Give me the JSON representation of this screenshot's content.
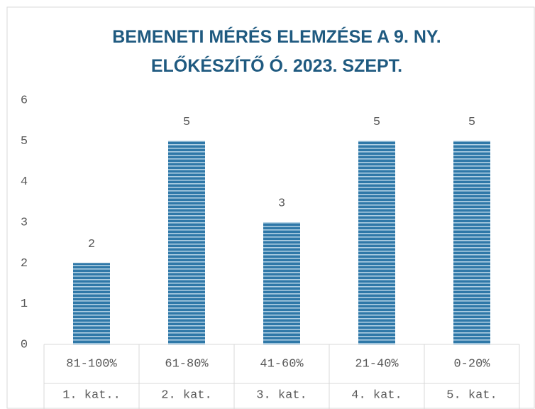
{
  "chart_data": {
    "type": "bar",
    "title": [
      "BEMENETI MÉRÉS ELEMZÉSE A 9. NY.",
      "ELŐKÉSZÍTŐ Ó. 2023. SZEPT."
    ],
    "categories": [
      [
        "81-100%",
        "1. kat.."
      ],
      [
        "61-80%",
        "2. kat."
      ],
      [
        "41-60%",
        "3. kat."
      ],
      [
        "21-40%",
        "4. kat."
      ],
      [
        "0-20%",
        "5. kat."
      ]
    ],
    "values": [
      2,
      5,
      3,
      5,
      5
    ],
    "color": "#2f78a8",
    "ylim": [
      0,
      6
    ],
    "yticks": [
      0,
      1,
      2,
      3,
      4,
      5,
      6
    ],
    "grid": false
  }
}
